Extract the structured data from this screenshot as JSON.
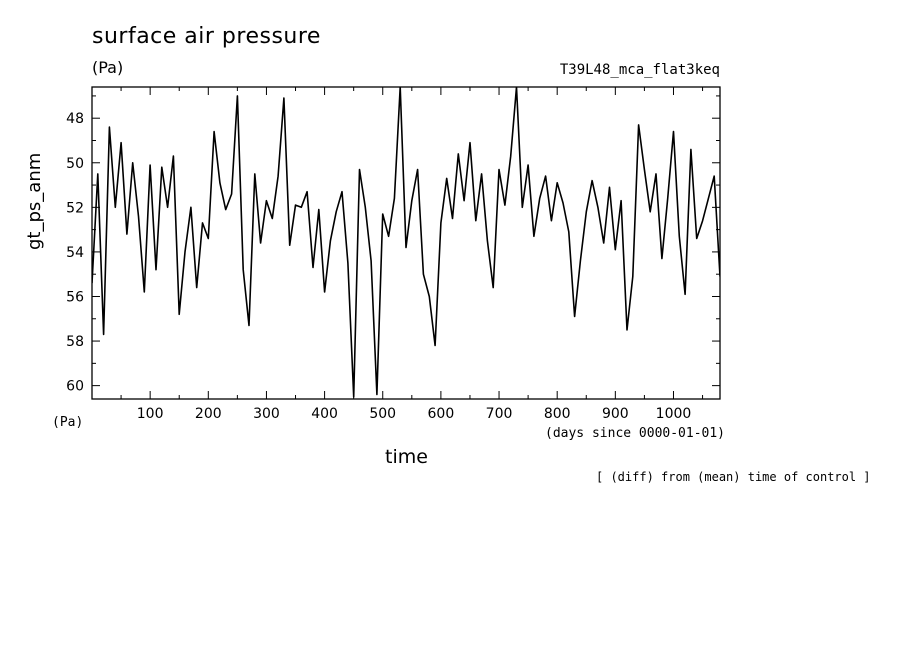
{
  "header": {
    "title": "surface air pressure",
    "unit_top": "(Pa)",
    "experiment": "T39L48_mca_flat3keq"
  },
  "axes": {
    "ylabel": "gt_ps_anm",
    "y_unit_bottom": "(Pa)",
    "xlabel": "time",
    "x_unit": "(days since 0000-01-01)"
  },
  "note": "[ (diff) from (mean) time of control ]",
  "chart_data": {
    "type": "line",
    "title": "surface air pressure",
    "xlabel": "time",
    "ylabel": "gt_ps_anm",
    "xlim": [
      0,
      1080
    ],
    "ylim": [
      60.6,
      46.6
    ],
    "y_inverted": true,
    "x_ticks": [
      100,
      200,
      300,
      400,
      500,
      600,
      700,
      800,
      900,
      1000
    ],
    "x_tick_labels": [
      "100",
      "200",
      "300",
      "400",
      "500",
      "600",
      "700",
      "800",
      "900",
      "1000"
    ],
    "y_ticks": [
      48,
      50,
      52,
      54,
      56,
      58,
      60
    ],
    "y_tick_labels": [
      "48",
      "50",
      "52",
      "54",
      "56",
      "58",
      "60"
    ],
    "grid": false,
    "series_color": "#000000",
    "x": [
      0,
      10,
      20,
      30,
      40,
      50,
      60,
      70,
      80,
      90,
      100,
      110,
      120,
      130,
      140,
      150,
      160,
      170,
      180,
      190,
      200,
      210,
      220,
      230,
      240,
      250,
      260,
      270,
      280,
      290,
      300,
      310,
      320,
      330,
      340,
      350,
      360,
      370,
      380,
      390,
      400,
      410,
      420,
      430,
      440,
      450,
      460,
      470,
      480,
      490,
      500,
      510,
      520,
      530,
      540,
      550,
      560,
      570,
      580,
      590,
      600,
      610,
      620,
      630,
      640,
      650,
      660,
      670,
      680,
      690,
      700,
      710,
      720,
      730,
      740,
      750,
      760,
      770,
      780,
      790,
      800,
      810,
      820,
      830,
      840,
      850,
      860,
      870,
      880,
      890,
      900,
      910,
      920,
      930,
      940,
      950,
      960,
      970,
      980,
      990,
      1000,
      1010,
      1020,
      1030,
      1040,
      1050,
      1060,
      1070,
      1080
    ],
    "values": [
      55.4,
      50.5,
      57.7,
      48.4,
      52.0,
      49.1,
      53.2,
      50.0,
      52.4,
      55.8,
      50.1,
      54.8,
      50.2,
      52.0,
      49.7,
      56.8,
      54.0,
      52.0,
      55.6,
      52.7,
      53.4,
      48.6,
      50.9,
      52.1,
      51.4,
      47.0,
      54.8,
      57.3,
      50.5,
      53.6,
      51.7,
      52.5,
      50.6,
      47.1,
      53.7,
      51.9,
      52.0,
      51.3,
      54.7,
      52.1,
      55.8,
      53.5,
      52.2,
      51.3,
      54.5,
      60.5,
      50.3,
      52.0,
      54.4,
      60.4,
      52.3,
      53.3,
      51.6,
      46.6,
      53.8,
      51.7,
      50.3,
      55.0,
      56.0,
      58.2,
      52.7,
      50.7,
      52.5,
      49.6,
      51.7,
      49.1,
      52.6,
      50.5,
      53.5,
      55.6,
      50.3,
      51.9,
      49.7,
      46.6,
      52.0,
      50.1,
      53.3,
      51.6,
      50.6,
      52.6,
      50.9,
      51.8,
      53.1,
      56.9,
      54.4,
      52.2,
      50.8,
      52.0,
      53.6,
      51.1,
      53.9,
      51.7,
      57.5,
      55.1,
      48.3,
      50.3,
      52.2,
      50.5,
      54.3,
      51.6,
      48.6,
      53.3,
      55.9,
      49.4,
      53.4,
      52.6,
      51.6,
      50.6,
      55.1
    ]
  }
}
